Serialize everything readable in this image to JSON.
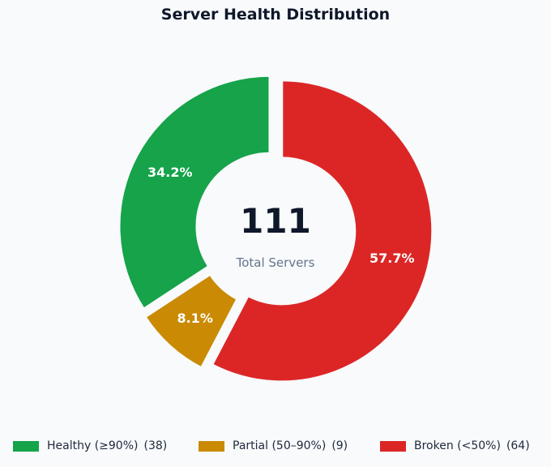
{
  "chart_data": {
    "type": "pie",
    "title": "Server Health Distribution",
    "center": {
      "total": "111",
      "caption": "Total Servers"
    },
    "slices": [
      {
        "name": "Broken (<50%)",
        "value": 64,
        "percent_label": "57.7%",
        "count_label": "(64)",
        "color": "#dc2626"
      },
      {
        "name": "Partial (50–90%)",
        "value": 9,
        "percent_label": "8.1%",
        "count_label": "(9)",
        "color": "#ca8a04"
      },
      {
        "name": "Healthy (≥90%)",
        "value": 38,
        "percent_label": "34.2%",
        "count_label": "(38)",
        "color": "#16a34a"
      }
    ],
    "legend": {
      "placement": "bottom",
      "order": [
        "Healthy (≥90%)",
        "Partial (50–90%)",
        "Broken (<50%)"
      ]
    }
  }
}
